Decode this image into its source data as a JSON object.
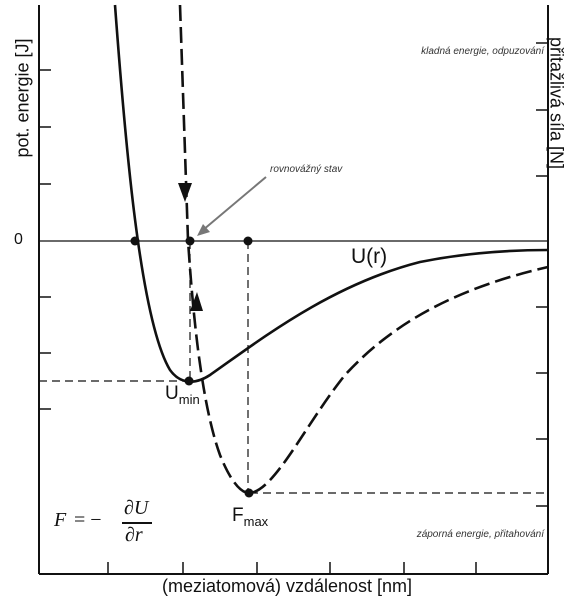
{
  "axes": {
    "ylabel_left": "pot. energie [J]",
    "ylabel_right": "přitažlivá síla [N]",
    "xlabel": "(meziatomová) vzdálenost [nm]",
    "zero": "0"
  },
  "annotations": {
    "repulsive": "kladná energie, odpuzování",
    "attractive": "záporná energie, přitahování",
    "equilibrium": "rovnovážný stav"
  },
  "curves": {
    "potential_label": "U(r)",
    "umin_base": "U",
    "umin_sub": "min",
    "fmax_base": "F",
    "fmax_sub": "max"
  },
  "formula": {
    "lhs": "F",
    "eq": "= −",
    "numerator": "∂U",
    "denominator": "∂r"
  },
  "colors": {
    "line": "#111111",
    "arrow_gray": "#777777",
    "grid": "#000000"
  }
}
